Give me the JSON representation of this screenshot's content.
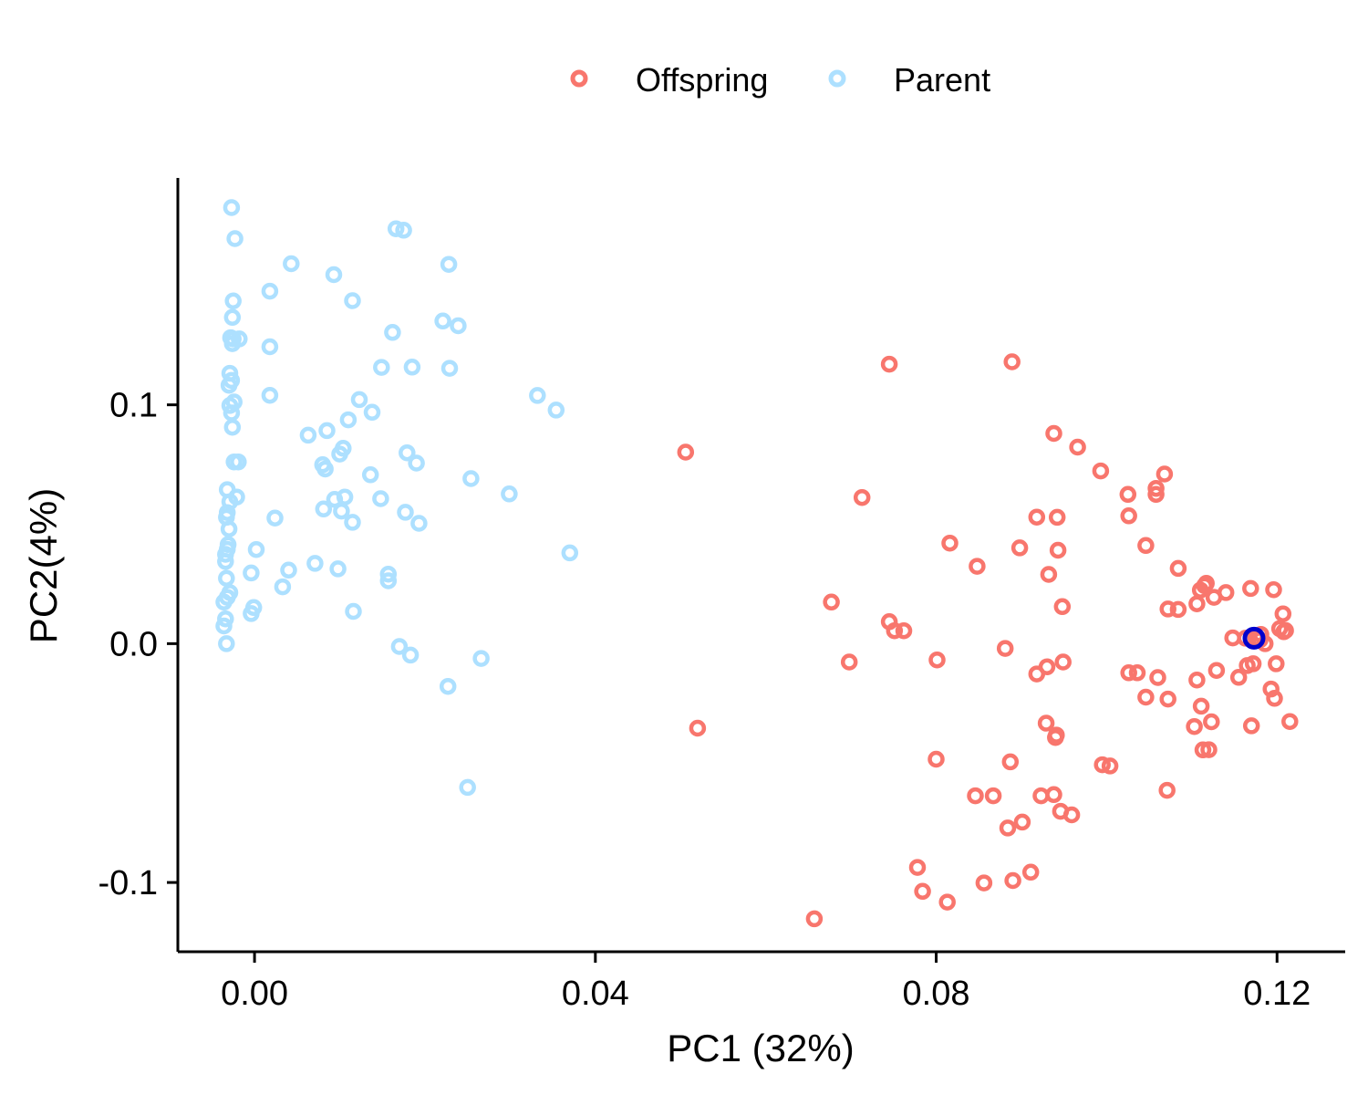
{
  "chart_data": {
    "type": "scatter",
    "xlabel": "PC1 (32%)",
    "ylabel": "PC2(4%)",
    "xlim": [
      -0.009,
      0.128
    ],
    "ylim": [
      -0.129,
      0.195
    ],
    "xticks": [
      {
        "value": 0.0,
        "label": "0.00"
      },
      {
        "value": 0.04,
        "label": "0.04"
      },
      {
        "value": 0.08,
        "label": "0.08"
      },
      {
        "value": 0.12,
        "label": "0.12"
      }
    ],
    "yticks": [
      {
        "value": -0.1,
        "label": "-0.1"
      },
      {
        "value": 0.0,
        "label": "0.0"
      },
      {
        "value": 0.1,
        "label": "0.1"
      }
    ],
    "grid": false,
    "legend_position": "top",
    "highlight": {
      "x": 0.1173,
      "y": 0.0023,
      "color": "#0000CD"
    },
    "series": [
      {
        "name": "Offspring",
        "color": "#F8766D",
        "points": [
          [
            0.0506,
            0.0802
          ],
          [
            0.052,
            -0.0354
          ],
          [
            0.0657,
            -0.1152
          ],
          [
            0.0677,
            0.0174
          ],
          [
            0.0698,
            -0.0077
          ],
          [
            0.0713,
            0.0612
          ],
          [
            0.0745,
            0.117
          ],
          [
            0.0745,
            0.0092
          ],
          [
            0.0751,
            0.0054
          ],
          [
            0.0762,
            0.0054
          ],
          [
            0.0778,
            -0.0937
          ],
          [
            0.0784,
            -0.1037
          ],
          [
            0.08,
            -0.0484
          ],
          [
            0.0801,
            -0.0068
          ],
          [
            0.0813,
            -0.1082
          ],
          [
            0.0816,
            0.0421
          ],
          [
            0.0846,
            -0.0637
          ],
          [
            0.0848,
            0.0324
          ],
          [
            0.0856,
            -0.1002
          ],
          [
            0.0867,
            -0.0637
          ],
          [
            0.0881,
            -0.002
          ],
          [
            0.0884,
            -0.0772
          ],
          [
            0.0887,
            -0.0495
          ],
          [
            0.0889,
            0.118
          ],
          [
            0.089,
            -0.0992
          ],
          [
            0.0898,
            0.0401
          ],
          [
            0.0901,
            -0.0747
          ],
          [
            0.0911,
            -0.0957
          ],
          [
            0.0918,
            0.053
          ],
          [
            0.0918,
            -0.0127
          ],
          [
            0.0923,
            -0.0637
          ],
          [
            0.0929,
            -0.0333
          ],
          [
            0.093,
            -0.0097
          ],
          [
            0.0932,
            0.029
          ],
          [
            0.0938,
            0.088
          ],
          [
            0.0938,
            -0.0632
          ],
          [
            0.094,
            -0.0393
          ],
          [
            0.0941,
            -0.0383
          ],
          [
            0.0942,
            0.0529
          ],
          [
            0.0943,
            0.0391
          ],
          [
            0.0946,
            -0.0702
          ],
          [
            0.0948,
            0.0155
          ],
          [
            0.0949,
            -0.0077
          ],
          [
            0.0959,
            -0.0717
          ],
          [
            0.0966,
            0.0823
          ],
          [
            0.0993,
            0.0723
          ],
          [
            0.0995,
            -0.0507
          ],
          [
            0.1004,
            -0.0512
          ],
          [
            0.1025,
            0.0625
          ],
          [
            0.1026,
            0.0535
          ],
          [
            0.1026,
            -0.0122
          ],
          [
            0.1036,
            -0.0122
          ],
          [
            0.1046,
            0.0411
          ],
          [
            0.1046,
            -0.0224
          ],
          [
            0.1058,
            0.065
          ],
          [
            0.1058,
            0.0625
          ],
          [
            0.106,
            -0.0142
          ],
          [
            0.1068,
            0.071
          ],
          [
            0.1071,
            -0.0614
          ],
          [
            0.1072,
            0.0145
          ],
          [
            0.1072,
            -0.0232
          ],
          [
            0.1084,
            0.0315
          ],
          [
            0.1084,
            0.0143
          ],
          [
            0.1103,
            -0.0347
          ],
          [
            0.1106,
            0.0167
          ],
          [
            0.1106,
            -0.0152
          ],
          [
            0.111,
            0.0224
          ],
          [
            0.1111,
            -0.0262
          ],
          [
            0.1113,
            -0.0445
          ],
          [
            0.1115,
            0.0243
          ],
          [
            0.1117,
            0.0253
          ],
          [
            0.112,
            -0.0444
          ],
          [
            0.1123,
            -0.0327
          ],
          [
            0.1126,
            0.0194
          ],
          [
            0.1129,
            -0.0112
          ],
          [
            0.114,
            0.0214
          ],
          [
            0.1148,
            0.0024
          ],
          [
            0.1155,
            -0.0141
          ],
          [
            0.1163,
            0.0023
          ],
          [
            0.1165,
            -0.0092
          ],
          [
            0.1169,
            0.0231
          ],
          [
            0.117,
            -0.0344
          ],
          [
            0.1172,
            -0.0084
          ],
          [
            0.1175,
            0.0025
          ],
          [
            0.118,
            0.0016
          ],
          [
            0.1181,
            0.0039
          ],
          [
            0.1186,
            0.0
          ],
          [
            0.1193,
            -0.019
          ],
          [
            0.1196,
            0.0226
          ],
          [
            0.1197,
            -0.0229
          ],
          [
            0.1199,
            -0.0084
          ],
          [
            0.1203,
            0.0063
          ],
          [
            0.1207,
            0.0125
          ],
          [
            0.1208,
            0.005
          ],
          [
            0.121,
            0.0055
          ],
          [
            0.1215,
            -0.0326
          ]
        ]
      },
      {
        "name": "Parent",
        "color": "#ADE0FF",
        "points": [
          [
            -0.0027,
            0.1826
          ],
          [
            -0.0023,
            0.1696
          ],
          [
            -0.0025,
            0.1435
          ],
          [
            -0.0026,
            0.1366
          ],
          [
            -0.0028,
            0.1281
          ],
          [
            -0.0026,
            0.1256
          ],
          [
            -0.0025,
            0.1276
          ],
          [
            -0.0018,
            0.1276
          ],
          [
            -0.0029,
            0.1132
          ],
          [
            -0.0027,
            0.1102
          ],
          [
            -0.003,
            0.1082
          ],
          [
            -0.0024,
            0.1012
          ],
          [
            -0.0029,
            0.0997
          ],
          [
            -0.0027,
            0.0966
          ],
          [
            -0.0026,
            0.0906
          ],
          [
            -0.0024,
            0.0761
          ],
          [
            -0.0019,
            0.0761
          ],
          [
            -0.0032,
            0.0645
          ],
          [
            -0.0021,
            0.0614
          ],
          [
            -0.0029,
            0.0594
          ],
          [
            -0.0032,
            0.0549
          ],
          [
            -0.0033,
            0.0529
          ],
          [
            -0.003,
            0.048
          ],
          [
            -0.0031,
            0.0415
          ],
          [
            -0.0032,
            0.0395
          ],
          [
            -0.0034,
            0.0374
          ],
          [
            -0.0034,
            0.0344
          ],
          [
            -0.0033,
            0.0274
          ],
          [
            -0.0029,
            0.0214
          ],
          [
            -0.0032,
            0.0194
          ],
          [
            -0.0036,
            0.0174
          ],
          [
            -0.0034,
            0.0104
          ],
          [
            -0.0036,
            0.0074
          ],
          [
            -0.0033,
            0.0
          ],
          [
            0.0002,
            0.0394
          ],
          [
            -0.0004,
            0.0296
          ],
          [
            -0.0001,
            0.0151
          ],
          [
            -0.0004,
            0.0126
          ],
          [
            0.0018,
            0.1476
          ],
          [
            0.0018,
            0.1243
          ],
          [
            0.0018,
            0.104
          ],
          [
            0.0024,
            0.0526
          ],
          [
            0.0033,
            0.0238
          ],
          [
            0.004,
            0.0308
          ],
          [
            0.0043,
            0.1591
          ],
          [
            0.0063,
            0.0873
          ],
          [
            0.0071,
            0.0336
          ],
          [
            0.008,
            0.0749
          ],
          [
            0.0081,
            0.0564
          ],
          [
            0.0083,
            0.0731
          ],
          [
            0.0085,
            0.0892
          ],
          [
            0.0093,
            0.1545
          ],
          [
            0.0094,
            0.0604
          ],
          [
            0.0098,
            0.0313
          ],
          [
            0.01,
            0.0794
          ],
          [
            0.0102,
            0.0555
          ],
          [
            0.0104,
            0.0818
          ],
          [
            0.0106,
            0.0614
          ],
          [
            0.0115,
            0.1436
          ],
          [
            0.0115,
            0.0508
          ],
          [
            0.0116,
            0.0135
          ],
          [
            0.011,
            0.0937
          ],
          [
            0.0123,
            0.1022
          ],
          [
            0.0138,
            0.0969
          ],
          [
            0.0136,
            0.0707
          ],
          [
            0.0148,
            0.0607
          ],
          [
            0.0149,
            0.1157
          ],
          [
            0.0157,
            0.0291
          ],
          [
            0.0157,
            0.0263
          ],
          [
            0.0162,
            0.1303
          ],
          [
            0.0166,
            0.1737
          ],
          [
            0.0177,
            0.055
          ],
          [
            0.017,
            -0.0012
          ],
          [
            0.0175,
            0.1731
          ],
          [
            0.0179,
            0.0799
          ],
          [
            0.0183,
            -0.0048
          ],
          [
            0.0185,
            0.1158
          ],
          [
            0.019,
            0.0756
          ],
          [
            0.0193,
            0.0504
          ],
          [
            0.0221,
            0.1351
          ],
          [
            0.0228,
            0.1588
          ],
          [
            0.0229,
            0.1153
          ],
          [
            0.0227,
            -0.0179
          ],
          [
            0.0239,
            0.1331
          ],
          [
            0.025,
            -0.0602
          ],
          [
            0.0254,
            0.0691
          ],
          [
            0.0266,
            -0.0062
          ],
          [
            0.0299,
            0.0627
          ],
          [
            0.0332,
            0.1039
          ],
          [
            0.0354,
            0.0978
          ],
          [
            0.037,
            0.038
          ]
        ]
      }
    ]
  }
}
